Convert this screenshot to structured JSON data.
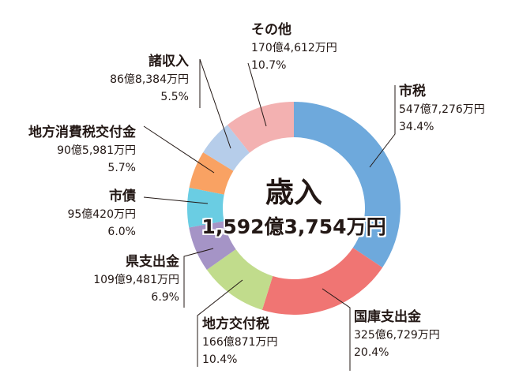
{
  "chart_data": {
    "type": "pie",
    "title": "歳入",
    "total": "1,592億3,754万円",
    "slices": [
      {
        "name": "市税",
        "amount": "547億7,276万円",
        "percent": 34.4,
        "percent_label": "34.4%",
        "color": "#6ea9dc"
      },
      {
        "name": "国庫支出金",
        "amount": "325億6,729万円",
        "percent": 20.4,
        "percent_label": "20.4%",
        "color": "#f07573"
      },
      {
        "name": "地方交付税",
        "amount": "166億871万円",
        "percent": 10.4,
        "percent_label": "10.4%",
        "color": "#c1dc8c"
      },
      {
        "name": "県支出金",
        "amount": "109億9,481万円",
        "percent": 6.9,
        "percent_label": "6.9%",
        "color": "#a594c6"
      },
      {
        "name": "市債",
        "amount": "95億420万円",
        "percent": 6.0,
        "percent_label": "6.0%",
        "color": "#6acde3"
      },
      {
        "name": "地方消費税交付金",
        "amount": "90億5,981万円",
        "percent": 5.7,
        "percent_label": "5.7%",
        "color": "#f9a263"
      },
      {
        "name": "諸収入",
        "amount": "86億8,384万円",
        "percent": 5.5,
        "percent_label": "5.5%",
        "color": "#b6cdea"
      },
      {
        "name": "その他",
        "amount": "170億4,612万円",
        "percent": 10.7,
        "percent_label": "10.7%",
        "color": "#f3b1b1"
      }
    ]
  }
}
